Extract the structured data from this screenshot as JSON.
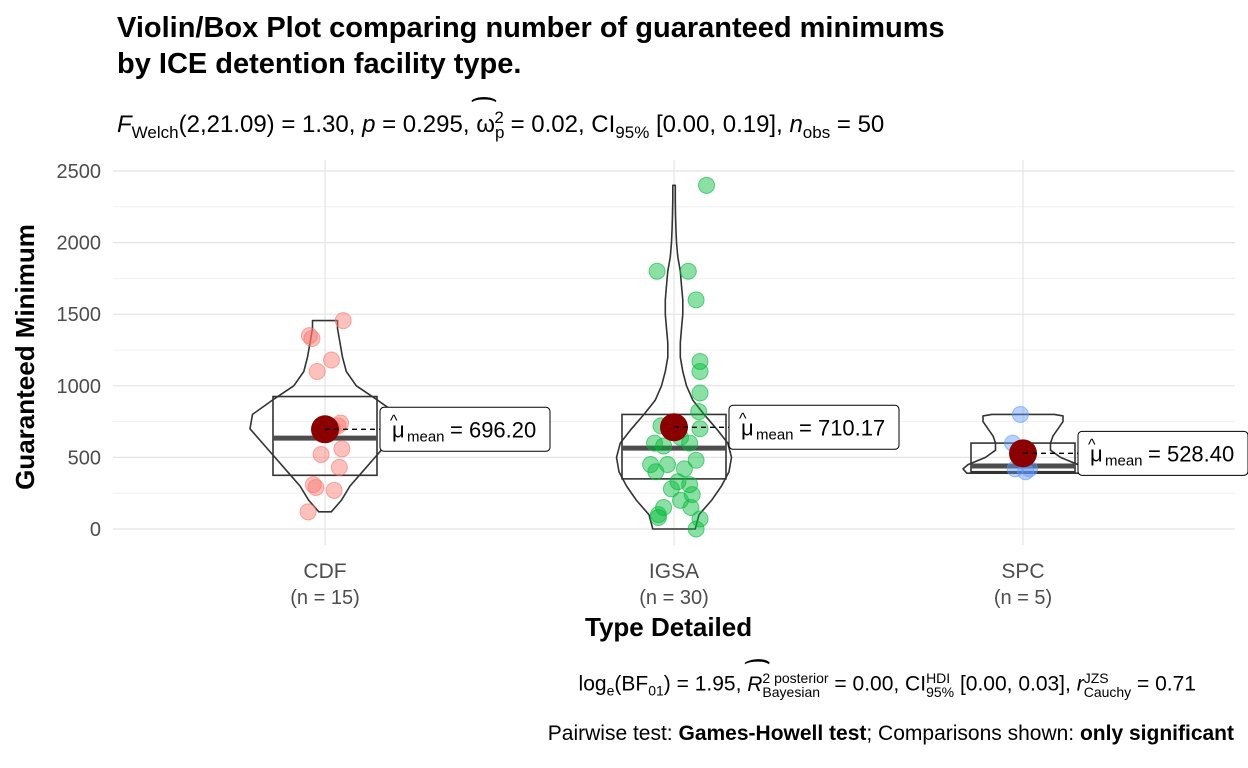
{
  "title_line1": "Violin/Box Plot comparing number of guaranteed minimums",
  "title_line2": "by ICE detention facility type.",
  "subtitle": {
    "F": "F",
    "welch": "Welch",
    "stat": "(2,21.09) = 1.30,",
    "p": "p",
    "p_val": "= 0.295,",
    "omega": "ω",
    "omega_sub": "p",
    "omega_sup": "2",
    "omega_val": "= 0.02, CI",
    "ci_sub": "95%",
    "ci_val": "[0.00, 0.19],",
    "n": "n",
    "n_sub": "obs",
    "n_val": "= 50"
  },
  "caption1": {
    "log": "log",
    "log_sub": "e",
    "bf": "(BF",
    "bf_sub": "01",
    "bf_val": ") = 1.95,",
    "R": "R",
    "r_sup": "2 posterior",
    "r_sub": "Bayesian",
    "r_val": "= 0.00, CI",
    "ci_sup": "HDI",
    "ci_sub": "95%",
    "ci_val": "[0.00, 0.03],",
    "rr": "r",
    "rr_sup": "JZS",
    "rr_sub": "Cauchy",
    "rr_val": "= 0.71"
  },
  "caption2": {
    "pre": "Pairwise test: ",
    "test": "Games-Howell test",
    "mid": "; Comparisons shown: ",
    "shown": "only significant"
  },
  "chart_data": {
    "type": "violin-box",
    "xlabel": "Type Detailed",
    "ylabel": "Guaranteed Minimum",
    "ylim": [
      -100,
      2520
    ],
    "yticks": [
      0,
      500,
      1000,
      1500,
      2000,
      2500
    ],
    "grid": true,
    "groups": [
      {
        "name": "CDF",
        "n_label": "(n = 15)",
        "color": "#F8766D",
        "mean": 696.2,
        "mean_label": "696.20",
        "box": {
          "q1": 375,
          "median": 635,
          "q3": 925
        },
        "violin": [
          [
            120,
            0.05
          ],
          [
            200,
            0.13
          ],
          [
            300,
            0.2
          ],
          [
            400,
            0.3
          ],
          [
            500,
            0.4
          ],
          [
            600,
            0.5
          ],
          [
            700,
            0.6
          ],
          [
            800,
            0.58
          ],
          [
            900,
            0.42
          ],
          [
            1000,
            0.25
          ],
          [
            1100,
            0.17
          ],
          [
            1200,
            0.14
          ],
          [
            1300,
            0.12
          ],
          [
            1400,
            0.1
          ],
          [
            1455,
            0.1
          ]
        ],
        "points": [
          [
            -0.13,
            120
          ],
          [
            -0.07,
            290
          ],
          [
            -0.09,
            310
          ],
          [
            0.07,
            270
          ],
          [
            0.11,
            430
          ],
          [
            -0.03,
            520
          ],
          [
            0.13,
            560
          ],
          [
            0.06,
            700
          ],
          [
            0.12,
            740
          ],
          [
            0.1,
            720
          ],
          [
            -0.06,
            1100
          ],
          [
            0.05,
            1180
          ],
          [
            -0.1,
            1330
          ],
          [
            -0.12,
            1350
          ],
          [
            0.14,
            1455
          ]
        ]
      },
      {
        "name": "IGSA",
        "n_label": "(n = 30)",
        "color": "#00BA38",
        "mean": 710.17,
        "mean_label": "710.17",
        "box": {
          "q1": 350,
          "median": 565,
          "q3": 800
        },
        "violin": [
          [
            0,
            0.17
          ],
          [
            100,
            0.2
          ],
          [
            200,
            0.3
          ],
          [
            300,
            0.38
          ],
          [
            400,
            0.44
          ],
          [
            500,
            0.46
          ],
          [
            600,
            0.43
          ],
          [
            700,
            0.34
          ],
          [
            800,
            0.24
          ],
          [
            900,
            0.15
          ],
          [
            1000,
            0.1
          ],
          [
            1100,
            0.07
          ],
          [
            1200,
            0.05
          ],
          [
            1300,
            0.05
          ],
          [
            1400,
            0.06
          ],
          [
            1500,
            0.07
          ],
          [
            1600,
            0.07
          ],
          [
            1700,
            0.06
          ],
          [
            1800,
            0.05
          ],
          [
            1900,
            0.03
          ],
          [
            2000,
            0.02
          ],
          [
            2100,
            0.015
          ],
          [
            2200,
            0.012
          ],
          [
            2300,
            0.01
          ],
          [
            2400,
            0.01
          ]
        ],
        "points": [
          [
            -0.13,
            1800
          ],
          [
            0.11,
            1800
          ],
          [
            0.17,
            1600
          ],
          [
            0.2,
            1170
          ],
          [
            0.2,
            1100
          ],
          [
            0.2,
            950
          ],
          [
            0.19,
            820
          ],
          [
            0.2,
            700
          ],
          [
            -0.1,
            720
          ],
          [
            0.05,
            640
          ],
          [
            0.12,
            600
          ],
          [
            -0.15,
            600
          ],
          [
            -0.08,
            580
          ],
          [
            0.17,
            480
          ],
          [
            -0.18,
            450
          ],
          [
            -0.05,
            450
          ],
          [
            0.08,
            420
          ],
          [
            -0.14,
            400
          ],
          [
            0.03,
            330
          ],
          [
            0.12,
            310
          ],
          [
            -0.02,
            280
          ],
          [
            0.14,
            240
          ],
          [
            0.05,
            200
          ],
          [
            -0.08,
            150
          ],
          [
            -0.12,
            100
          ],
          [
            0.2,
            70
          ],
          [
            0.17,
            0
          ],
          [
            0.13,
            150
          ],
          [
            -0.12,
            80
          ],
          [
            0.25,
            2400
          ]
        ]
      },
      {
        "name": "SPC",
        "n_label": "(n = 5)",
        "color": "#619CFF",
        "mean": 528.4,
        "mean_label": "528.40",
        "box": {
          "q1": 400,
          "median": 440,
          "q3": 600
        },
        "violin": [
          [
            390,
            0.45
          ],
          [
            420,
            0.48
          ],
          [
            450,
            0.44
          ],
          [
            500,
            0.3
          ],
          [
            550,
            0.22
          ],
          [
            600,
            0.22
          ],
          [
            650,
            0.24
          ],
          [
            700,
            0.28
          ],
          [
            750,
            0.32
          ],
          [
            790,
            0.32
          ],
          [
            800,
            0.25
          ]
        ],
        "points": [
          [
            -0.02,
            800
          ],
          [
            -0.08,
            600
          ],
          [
            0.02,
            400
          ],
          [
            -0.06,
            420
          ],
          [
            0.05,
            420
          ]
        ]
      }
    ]
  }
}
